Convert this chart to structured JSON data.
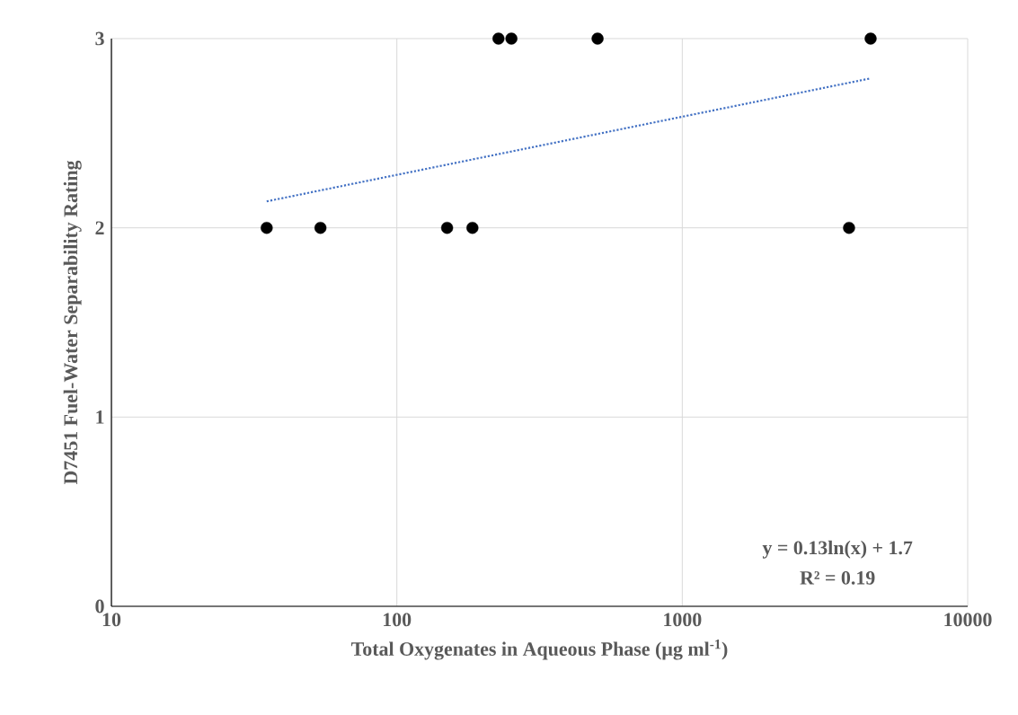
{
  "chart_data": {
    "type": "scatter",
    "xlabel": "Total Oxygenates in Aqueous Phase (µg ml$^{-1}$)",
    "ylabel": "D7451 Fuel-Water Separability Rating",
    "series": [
      {
        "color": "#000000",
        "marker": "circle",
        "x": [
          35,
          54,
          150,
          184,
          227,
          252,
          505,
          3840,
          4570
        ],
        "values": [
          2,
          2,
          2,
          2,
          3,
          3,
          3,
          2,
          3
        ]
      },
      {
        "type": "line",
        "color": "#4472c4",
        "line_style": "dotted",
        "x": [
          35,
          4570
        ],
        "values": [
          2.14,
          2.79
        ]
      }
    ],
    "xlim": [
      10,
      10000
    ],
    "ylim": [
      0,
      3
    ],
    "xticks": [
      10,
      100,
      1000,
      10000
    ],
    "yticks": [
      0,
      1,
      2,
      3
    ],
    "log": "x",
    "grid": true,
    "annotations": [
      "y = 0.13ln(x) + 1.7",
      "R² = 0.19"
    ]
  }
}
